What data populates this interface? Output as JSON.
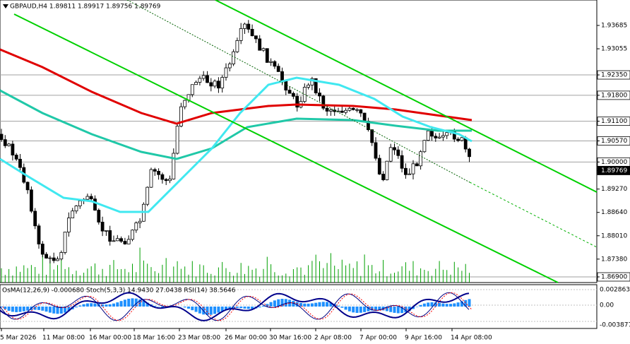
{
  "header": {
    "title": "GBPAUD,H4  1.89811 1.89917 1.89756 1.89769"
  },
  "price_axis": [
    {
      "label": "1.93685",
      "style": "plain"
    },
    {
      "label": "1.93055",
      "style": "plain"
    },
    {
      "label": "1.92350",
      "style": "level"
    },
    {
      "label": "1.91800",
      "style": "level"
    },
    {
      "label": "1.91100",
      "style": "level"
    },
    {
      "label": "1.90570",
      "style": "level"
    },
    {
      "label": "1.90000",
      "style": "level"
    },
    {
      "label": "1.89769",
      "style": "current"
    },
    {
      "label": "1.89270",
      "style": "plain"
    },
    {
      "label": "1.88640",
      "style": "plain"
    },
    {
      "label": "1.88010",
      "style": "plain"
    },
    {
      "label": "1.87380",
      "style": "plain"
    },
    {
      "label": "1.86900",
      "style": "level"
    }
  ],
  "indicator": {
    "header": "OsMA(12,26,9) -0.000680 Stoch(5,3,3) 14.9430 27.0438 RSI(14) 38.5646",
    "axis": [
      "0.002863",
      "0.00",
      "-0.003877"
    ]
  },
  "time_axis": [
    "5 Mar 2026",
    "11 Mar 08:00",
    "16 Mar 00:00",
    "18 Mar 16:00",
    "23 Mar 08:00",
    "26 Mar 00:00",
    "30 Mar 16:00",
    "2 Apr 08:00",
    "7 Apr 00:00",
    "9 Apr 16:00",
    "14 Apr 08:00"
  ]
}
